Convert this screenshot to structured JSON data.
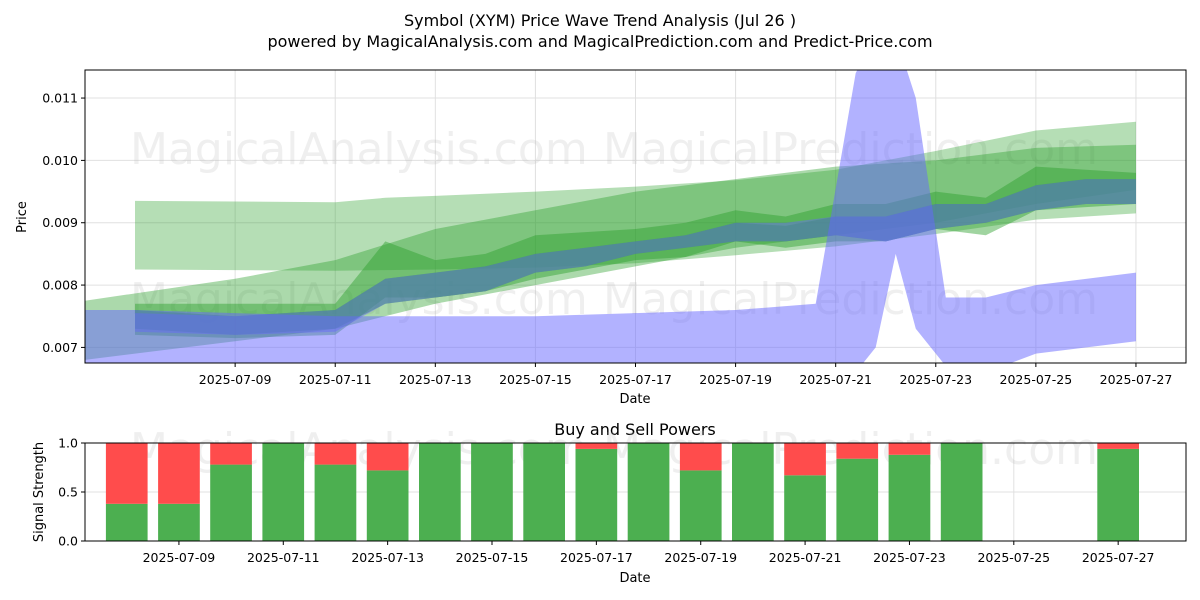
{
  "header": {
    "title": "Symbol (XYM) Price Wave Trend Analysis (Jul 26 )",
    "subtitle": "powered by MagicalAnalysis.com and MagicalPrediction.com and Predict-Price.com"
  },
  "watermarks": [
    "MagicalAnalysis.com",
    "MagicalPrediction.com"
  ],
  "colors": {
    "green_band": "#2ca02c",
    "blue_band": "#6666ff",
    "buy": "#4caf50",
    "sell": "#ff4c4c"
  },
  "chart_data": [
    {
      "type": "area",
      "title": "",
      "xlabel": "Date",
      "ylabel": "Price",
      "xlim": [
        "2025-07-06",
        "2025-07-28"
      ],
      "ylim": [
        0.00675,
        0.01145
      ],
      "xticks": [
        "2025-07-09",
        "2025-07-11",
        "2025-07-13",
        "2025-07-15",
        "2025-07-17",
        "2025-07-19",
        "2025-07-21",
        "2025-07-23",
        "2025-07-25",
        "2025-07-27"
      ],
      "yticks": [
        0.007,
        0.008,
        0.009,
        0.01,
        0.011
      ],
      "ytick_labels": [
        "0.007",
        "0.008",
        "0.009",
        "0.010",
        "0.011"
      ],
      "grid": true,
      "series": [
        {
          "color": "green",
          "opacity": 0.35,
          "x": [
            "2025-07-07",
            "2025-07-11",
            "2025-07-12",
            "2025-07-13",
            "2025-07-15",
            "2025-07-17",
            "2025-07-19",
            "2025-07-21",
            "2025-07-23",
            "2025-07-25",
            "2025-07-27"
          ],
          "upper": [
            0.00935,
            0.00933,
            0.0094,
            0.00943,
            0.0095,
            0.00958,
            0.00968,
            0.00985,
            0.01015,
            0.01048,
            0.01062
          ],
          "lower": [
            0.00825,
            0.00823,
            0.00824,
            0.00825,
            0.00828,
            0.00835,
            0.00848,
            0.00862,
            0.00882,
            0.00905,
            0.00915
          ]
        },
        {
          "color": "green",
          "opacity": 0.4,
          "x": [
            "2025-07-06",
            "2025-07-09",
            "2025-07-11",
            "2025-07-13",
            "2025-07-15",
            "2025-07-17",
            "2025-07-19",
            "2025-07-21",
            "2025-07-23",
            "2025-07-25",
            "2025-07-27"
          ],
          "upper": [
            0.00775,
            0.0081,
            0.0084,
            0.0089,
            0.0092,
            0.0095,
            0.0097,
            0.0099,
            0.01,
            0.0102,
            0.01025
          ],
          "lower": [
            0.0068,
            0.0071,
            0.0073,
            0.0077,
            0.008,
            0.0083,
            0.0086,
            0.0088,
            0.009,
            0.0093,
            0.00953
          ]
        },
        {
          "color": "green",
          "opacity": 0.45,
          "x": [
            "2025-07-07",
            "2025-07-09",
            "2025-07-11",
            "2025-07-12",
            "2025-07-13",
            "2025-07-14",
            "2025-07-15",
            "2025-07-17",
            "2025-07-18",
            "2025-07-19",
            "2025-07-20",
            "2025-07-21",
            "2025-07-22",
            "2025-07-23",
            "2025-07-24",
            "2025-07-25",
            "2025-07-27"
          ],
          "upper": [
            0.0077,
            0.0077,
            0.0077,
            0.0087,
            0.0084,
            0.0085,
            0.0088,
            0.0089,
            0.009,
            0.0092,
            0.0091,
            0.0093,
            0.0093,
            0.0095,
            0.0094,
            0.0099,
            0.0098
          ],
          "lower": [
            0.0072,
            0.00715,
            0.0072,
            0.0078,
            0.0078,
            0.0079,
            0.0081,
            0.0084,
            0.00845,
            0.0087,
            0.0086,
            0.0087,
            0.0087,
            0.0089,
            0.0088,
            0.0092,
            0.0093
          ]
        },
        {
          "color": "green",
          "opacity": 0.55,
          "x": [
            "2025-07-07",
            "2025-07-09",
            "2025-07-11",
            "2025-07-12",
            "2025-07-13",
            "2025-07-14",
            "2025-07-15",
            "2025-07-16",
            "2025-07-17",
            "2025-07-18",
            "2025-07-19",
            "2025-07-20",
            "2025-07-21",
            "2025-07-22",
            "2025-07-23",
            "2025-07-24",
            "2025-07-25",
            "2025-07-26",
            "2025-07-27"
          ],
          "upper": [
            0.0076,
            0.0075,
            0.0076,
            0.0081,
            0.0082,
            0.0083,
            0.0085,
            0.0086,
            0.0087,
            0.0088,
            0.009,
            0.00895,
            0.0091,
            0.0091,
            0.0093,
            0.0093,
            0.0096,
            0.0097,
            0.0097
          ],
          "lower": [
            0.0073,
            0.0072,
            0.0073,
            0.0077,
            0.0078,
            0.0079,
            0.0082,
            0.0083,
            0.0085,
            0.0086,
            0.0087,
            0.0087,
            0.0088,
            0.0087,
            0.0089,
            0.009,
            0.0092,
            0.0093,
            0.0093
          ]
        },
        {
          "color": "blue",
          "opacity": 0.5,
          "x": [
            "2025-07-06",
            "2025-07-07",
            "2025-07-11",
            "2025-07-13",
            "2025-07-15",
            "2025-07-17",
            "2025-07-19",
            "2025-07-20.6",
            "2025-07-21.4",
            "2025-07-21.8",
            "2025-07-22.2",
            "2025-07-22.6",
            "2025-07-23.2",
            "2025-07-24",
            "2025-07-25",
            "2025-07-27"
          ],
          "upper": [
            0.0076,
            0.0076,
            0.0075,
            0.0075,
            0.0075,
            0.00755,
            0.0076,
            0.0077,
            0.0114,
            0.012,
            0.012,
            0.011,
            0.0078,
            0.0078,
            0.008,
            0.0082
          ],
          "lower": [
            0.0063,
            0.0062,
            0.0063,
            0.0063,
            0.0063,
            0.0063,
            0.0063,
            0.0064,
            0.0066,
            0.007,
            0.0085,
            0.0073,
            0.0067,
            0.0066,
            0.0069,
            0.0071
          ]
        },
        {
          "color": "blue",
          "opacity": 0.45,
          "x": [
            "2025-07-07",
            "2025-07-09",
            "2025-07-11",
            "2025-07-12",
            "2025-07-13",
            "2025-07-14",
            "2025-07-15",
            "2025-07-16",
            "2025-07-17",
            "2025-07-18",
            "2025-07-19",
            "2025-07-20",
            "2025-07-21",
            "2025-07-22",
            "2025-07-23",
            "2025-07-24",
            "2025-07-25",
            "2025-07-26",
            "2025-07-27"
          ],
          "upper": [
            0.00755,
            0.0075,
            0.0076,
            0.0081,
            0.0082,
            0.0083,
            0.0085,
            0.0086,
            0.0087,
            0.0088,
            0.009,
            0.009,
            0.0091,
            0.0091,
            0.0093,
            0.0093,
            0.0096,
            0.0097,
            0.0097
          ],
          "lower": [
            0.00725,
            0.0072,
            0.00725,
            0.0077,
            0.0078,
            0.0079,
            0.0082,
            0.0083,
            0.0085,
            0.0086,
            0.0087,
            0.0087,
            0.0088,
            0.0087,
            0.0089,
            0.009,
            0.0092,
            0.0093,
            0.0093
          ]
        }
      ]
    },
    {
      "type": "bar",
      "title": "Buy and Sell Powers",
      "xlabel": "Date",
      "ylabel": "Signal Strength",
      "xlim": [
        "2025-07-07.2",
        "2025-07-28.3"
      ],
      "ylim": [
        0,
        1
      ],
      "xticks": [
        "2025-07-09",
        "2025-07-11",
        "2025-07-13",
        "2025-07-15",
        "2025-07-17",
        "2025-07-19",
        "2025-07-21",
        "2025-07-23",
        "2025-07-25",
        "2025-07-27"
      ],
      "yticks": [
        0.0,
        0.5,
        1.0
      ],
      "ytick_labels": [
        "0.0",
        "0.5",
        "1.0"
      ],
      "grid": true,
      "categories": [
        "2025-07-08",
        "2025-07-09",
        "2025-07-10",
        "2025-07-11",
        "2025-07-12",
        "2025-07-13",
        "2025-07-14",
        "2025-07-15",
        "2025-07-16",
        "2025-07-17",
        "2025-07-18",
        "2025-07-19",
        "2025-07-20",
        "2025-07-21",
        "2025-07-22",
        "2025-07-23",
        "2025-07-24",
        "2025-07-27"
      ],
      "series": [
        {
          "name": "Buy",
          "values": [
            0.38,
            0.38,
            0.78,
            1.0,
            0.78,
            0.72,
            1.0,
            1.0,
            1.0,
            0.94,
            1.0,
            0.72,
            1.0,
            0.67,
            0.84,
            0.88,
            1.0,
            0.94
          ]
        },
        {
          "name": "Sell",
          "values": [
            0.62,
            0.62,
            0.22,
            0.0,
            0.22,
            0.28,
            0.0,
            0.0,
            0.0,
            0.06,
            0.0,
            0.28,
            0.0,
            0.33,
            0.16,
            0.12,
            0.0,
            0.06
          ]
        }
      ]
    }
  ]
}
